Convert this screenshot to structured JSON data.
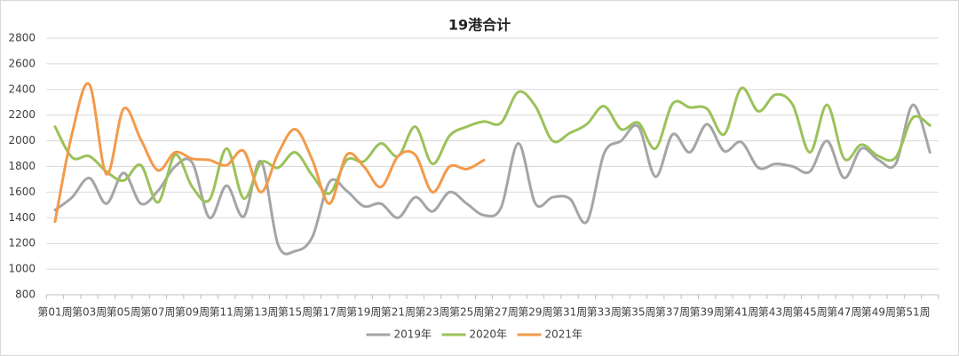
{
  "chart_data": {
    "type": "line",
    "title": "19港合计",
    "categories": [
      "第01周",
      null,
      "第03周",
      null,
      "第05周",
      null,
      "第07周",
      null,
      "第09周",
      null,
      "第11周",
      null,
      "第13周",
      null,
      "第15周",
      null,
      "第17周",
      null,
      "第19周",
      null,
      "第21周",
      null,
      "第23周",
      null,
      "第25周",
      null,
      "第27周",
      null,
      "第29周",
      null,
      "第31周",
      null,
      "第33周",
      null,
      "第35周",
      null,
      "第37周",
      null,
      "第39周",
      null,
      "第41周",
      null,
      "第43周",
      null,
      "第45周",
      null,
      "第47周",
      null,
      "第49周",
      null,
      "第51周",
      null
    ],
    "series": [
      {
        "name": "2019年",
        "color": "#a5a5a5",
        "values": [
          1460,
          1560,
          1710,
          1510,
          1750,
          1510,
          1610,
          1800,
          1830,
          1400,
          1650,
          1410,
          1840,
          1190,
          1140,
          1250,
          1680,
          1610,
          1490,
          1510,
          1400,
          1560,
          1450,
          1600,
          1510,
          1420,
          1480,
          1980,
          1510,
          1560,
          1550,
          1370,
          1900,
          2000,
          2110,
          1720,
          2050,
          1910,
          2130,
          1920,
          1990,
          1790,
          1820,
          1800,
          1760,
          2000,
          1710,
          1940,
          1850,
          1820,
          2280,
          1910
        ]
      },
      {
        "name": "2020年",
        "color": "#9bc25a",
        "values": [
          2110,
          1870,
          1880,
          1760,
          1690,
          1810,
          1520,
          1890,
          1640,
          1540,
          1940,
          1550,
          1830,
          1790,
          1910,
          1730,
          1590,
          1850,
          1840,
          1980,
          1880,
          2110,
          1820,
          2040,
          2110,
          2150,
          2140,
          2380,
          2270,
          2000,
          2060,
          2130,
          2270,
          2090,
          2140,
          1940,
          2290,
          2260,
          2250,
          2050,
          2410,
          2230,
          2360,
          2280,
          1910,
          2280,
          1860,
          1970,
          1880,
          1870,
          2180,
          2120
        ]
      },
      {
        "name": "2021年",
        "color": "#f39a4a",
        "values": [
          1370,
          2060,
          2440,
          1740,
          2250,
          2010,
          1770,
          1910,
          1860,
          1850,
          1810,
          1920,
          1600,
          1900,
          2090,
          1850,
          1510,
          1890,
          1800,
          1640,
          1880,
          1890,
          1600,
          1800,
          1780,
          1850,
          null,
          null,
          null,
          null,
          null,
          null,
          null,
          null,
          null,
          null,
          null,
          null,
          null,
          null,
          null,
          null,
          null,
          null,
          null,
          null,
          null,
          null,
          null,
          null,
          null,
          null
        ]
      }
    ],
    "ylim": [
      800,
      2800
    ],
    "yticks": [
      800,
      1000,
      1200,
      1400,
      1600,
      1800,
      2000,
      2200,
      2400,
      2600,
      2800
    ],
    "grid": true,
    "legend": "bottom"
  }
}
